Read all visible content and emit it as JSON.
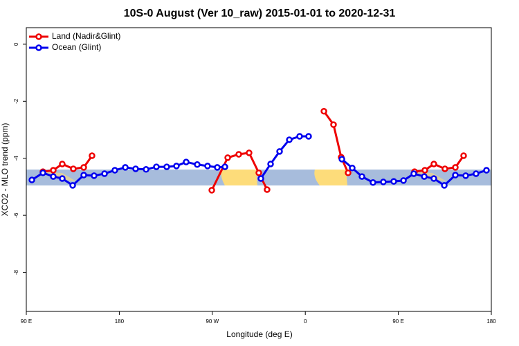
{
  "chart_data": {
    "type": "line",
    "title": "10S-0 August (Ver 10_raw)   2015-01-01 to 2020-12-31",
    "x_label": "Longitude (deg E)",
    "y_label": "XCO2 - MLO trend (ppm)",
    "xlim": [
      90,
      540
    ],
    "ylim": [
      0.58,
      -9.37
    ],
    "xticks": [
      {
        "value": 90,
        "label": "90 E"
      },
      180,
      {
        "value": 270,
        "label": "90 W"
      },
      {
        "value": 360,
        "label": "0"
      },
      {
        "value": 450,
        "label": "90 E"
      },
      {
        "value": 540,
        "label": "180"
      }
    ],
    "yticks": [
      0,
      -2,
      -4,
      -6,
      -8
    ],
    "legend": "top-left",
    "series": [
      {
        "name": "Land (Nadir&Glint)",
        "color": "#ee0000",
        "x": [
          106.1,
          116.1,
          124.8,
          135.5,
          145.6,
          153.6,
          null,
          269.5,
          284.9,
          295.6,
          305.6,
          315,
          323,
          null,
          378,
          387.3,
          394.7,
          401.4,
          null,
          465.7,
          475.7,
          484.4,
          495.1,
          505.2,
          513.2
        ],
        "values": [
          -4.47,
          -4.42,
          -4.2,
          -4.37,
          -4.32,
          -3.91,
          null,
          -5.12,
          -3.98,
          -3.86,
          -3.81,
          -4.51,
          -5.1,
          null,
          -2.35,
          -2.82,
          -3.96,
          -4.51,
          null,
          -4.47,
          -4.42,
          -4.2,
          -4.37,
          -4.32,
          -3.91
        ]
      },
      {
        "name": "Ocean (Glint)",
        "color": "#0000ee",
        "x": [
          95.4,
          106.1,
          116.1,
          124.8,
          134.9,
          145.6,
          155.6,
          165.7,
          175.7,
          185.8,
          195.8,
          205.9,
          215.9,
          225.9,
          235.3,
          244.7,
          255.4,
          265.4,
          274.8,
          282.2,
          null,
          317,
          326.4,
          335.1,
          344.5,
          354.5,
          363.2,
          null,
          395.4,
          405.4,
          414.8,
          425.5,
          435.5,
          445.6,
          455,
          465,
          475.1,
          484.4,
          494.5,
          505.2,
          515.2,
          525.2,
          535.3
        ],
        "values": [
          -4.76,
          -4.51,
          -4.64,
          -4.71,
          -4.95,
          -4.59,
          -4.61,
          -4.54,
          -4.42,
          -4.32,
          -4.37,
          -4.39,
          -4.3,
          -4.3,
          -4.27,
          -4.13,
          -4.22,
          -4.27,
          -4.32,
          -4.3,
          null,
          -4.71,
          -4.2,
          -3.76,
          -3.35,
          -3.23,
          -3.23,
          null,
          -4.03,
          -4.34,
          -4.64,
          -4.85,
          -4.83,
          -4.81,
          -4.78,
          -4.54,
          -4.64,
          -4.71,
          -4.95,
          -4.59,
          -4.61,
          -4.54,
          -4.42
        ]
      }
    ]
  }
}
